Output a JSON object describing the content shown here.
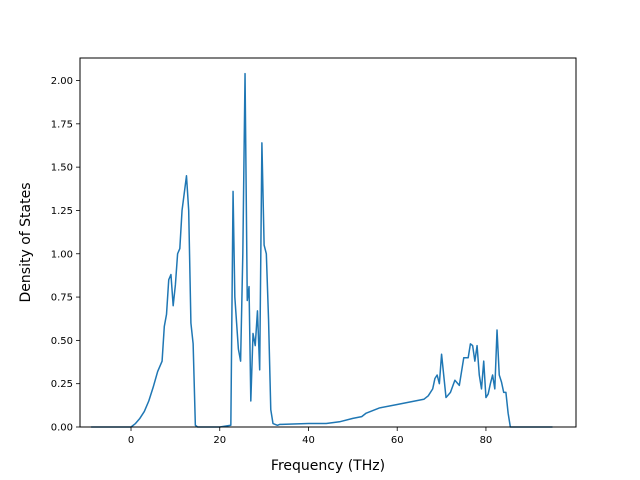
{
  "chart_data": {
    "type": "line",
    "title": "",
    "xlabel": "Frequency (THz)",
    "ylabel": "Density of States",
    "xlim": [
      -11.5,
      100.3
    ],
    "ylim": [
      0,
      2.13
    ],
    "xticks": [
      0,
      20,
      40,
      60,
      80
    ],
    "xtick_labels": [
      "0",
      "20",
      "40",
      "60",
      "80"
    ],
    "yticks": [
      0,
      0.25,
      0.5,
      0.75,
      1.0,
      1.25,
      1.5,
      1.75,
      2.0
    ],
    "ytick_labels": [
      "0.00",
      "0.25",
      "0.50",
      "0.75",
      "1.00",
      "1.25",
      "1.50",
      "1.75",
      "2.00"
    ],
    "grid": false,
    "series": [
      {
        "color": "#1f77b4",
        "x": [
          -9,
          -5,
          0,
          1,
          2,
          3,
          4,
          5,
          6,
          7,
          7.5,
          8,
          8.5,
          9,
          9.5,
          10,
          10.5,
          11,
          11.5,
          12,
          12.5,
          13,
          13.5,
          14,
          14.5,
          15,
          18,
          20,
          22.5,
          23,
          23.4,
          23.8,
          24.2,
          24.7,
          25.2,
          25.7,
          26.2,
          26.6,
          27,
          27.5,
          28,
          28.5,
          29,
          29.5,
          30,
          30.5,
          31,
          31.5,
          32,
          32.5,
          33,
          33.5,
          34,
          40,
          44,
          47,
          50,
          52,
          53,
          55,
          56,
          60,
          62,
          64,
          66,
          67,
          68,
          68.5,
          69,
          69.5,
          70,
          71,
          72,
          73,
          74,
          75,
          76,
          76.5,
          77,
          77.5,
          78,
          78.5,
          79,
          79.5,
          80,
          80.5,
          81,
          81.5,
          82,
          82.5,
          83,
          83.5,
          84,
          84.5,
          85,
          85.5,
          86,
          87,
          95
        ],
        "y": [
          0,
          0,
          0,
          0.02,
          0.05,
          0.09,
          0.15,
          0.23,
          0.32,
          0.38,
          0.58,
          0.65,
          0.85,
          0.88,
          0.7,
          0.82,
          1.0,
          1.03,
          1.25,
          1.35,
          1.45,
          1.25,
          0.6,
          0.48,
          0.01,
          0,
          0,
          0,
          0.01,
          1.36,
          0.75,
          0.6,
          0.45,
          0.38,
          1.0,
          2.04,
          0.73,
          0.81,
          0.15,
          0.54,
          0.47,
          0.67,
          0.33,
          1.64,
          1.05,
          1.0,
          0.62,
          0.1,
          0.02,
          0.015,
          0.01,
          0.015,
          0.015,
          0.02,
          0.02,
          0.03,
          0.05,
          0.06,
          0.08,
          0.1,
          0.11,
          0.13,
          0.14,
          0.15,
          0.16,
          0.18,
          0.22,
          0.28,
          0.3,
          0.25,
          0.42,
          0.17,
          0.2,
          0.27,
          0.24,
          0.4,
          0.4,
          0.48,
          0.47,
          0.38,
          0.47,
          0.3,
          0.22,
          0.38,
          0.17,
          0.19,
          0.25,
          0.3,
          0.22,
          0.56,
          0.3,
          0.26,
          0.2,
          0.2,
          0.08,
          0,
          0,
          0,
          0
        ]
      }
    ]
  }
}
